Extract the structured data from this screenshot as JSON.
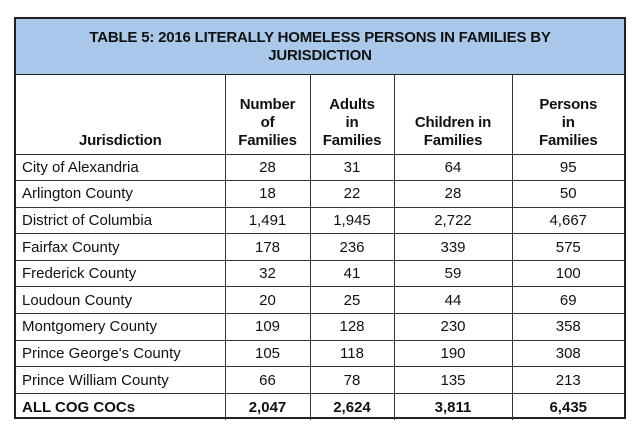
{
  "table": {
    "title": "TABLE 5: 2016 LITERALLY HOMELESS PERSONS IN FAMILIES BY JURISDICTION",
    "headers": {
      "jurisdiction": "Jurisdiction",
      "families_l1": "Number",
      "families_l2": "of",
      "families_l3": "Families",
      "adults_l1": "Adults",
      "adults_l2": "in",
      "adults_l3": "Families",
      "children_l1": "Children in",
      "children_l2": "Families",
      "persons_l1": "Persons",
      "persons_l2": "in",
      "persons_l3": "Families"
    },
    "rows": [
      {
        "name": "City of Alexandria",
        "families": "28",
        "adults": "31",
        "children": "64",
        "persons": "95"
      },
      {
        "name": "Arlington County",
        "families": "18",
        "adults": "22",
        "children": "28",
        "persons": "50"
      },
      {
        "name": "District of Columbia",
        "families": "1,491",
        "adults": "1,945",
        "children": "2,722",
        "persons": "4,667"
      },
      {
        "name": "Fairfax County",
        "families": "178",
        "adults": "236",
        "children": "339",
        "persons": "575"
      },
      {
        "name": "Frederick County",
        "families": "32",
        "adults": "41",
        "children": "59",
        "persons": "100"
      },
      {
        "name": "Loudoun County",
        "families": "20",
        "adults": "25",
        "children": "44",
        "persons": "69"
      },
      {
        "name": "Montgomery County",
        "families": "109",
        "adults": "128",
        "children": "230",
        "persons": "358"
      },
      {
        "name": "Prince George's County",
        "families": "105",
        "adults": "118",
        "children": "190",
        "persons": "308"
      },
      {
        "name": "Prince William County",
        "families": "66",
        "adults": "78",
        "children": "135",
        "persons": "213"
      }
    ],
    "total": {
      "name": "ALL COG COCs",
      "families": "2,047",
      "adults": "2,624",
      "children": "3,811",
      "persons": "6,435"
    },
    "colors": {
      "title_bg": "#a9c8ea",
      "border": "#222222"
    }
  }
}
